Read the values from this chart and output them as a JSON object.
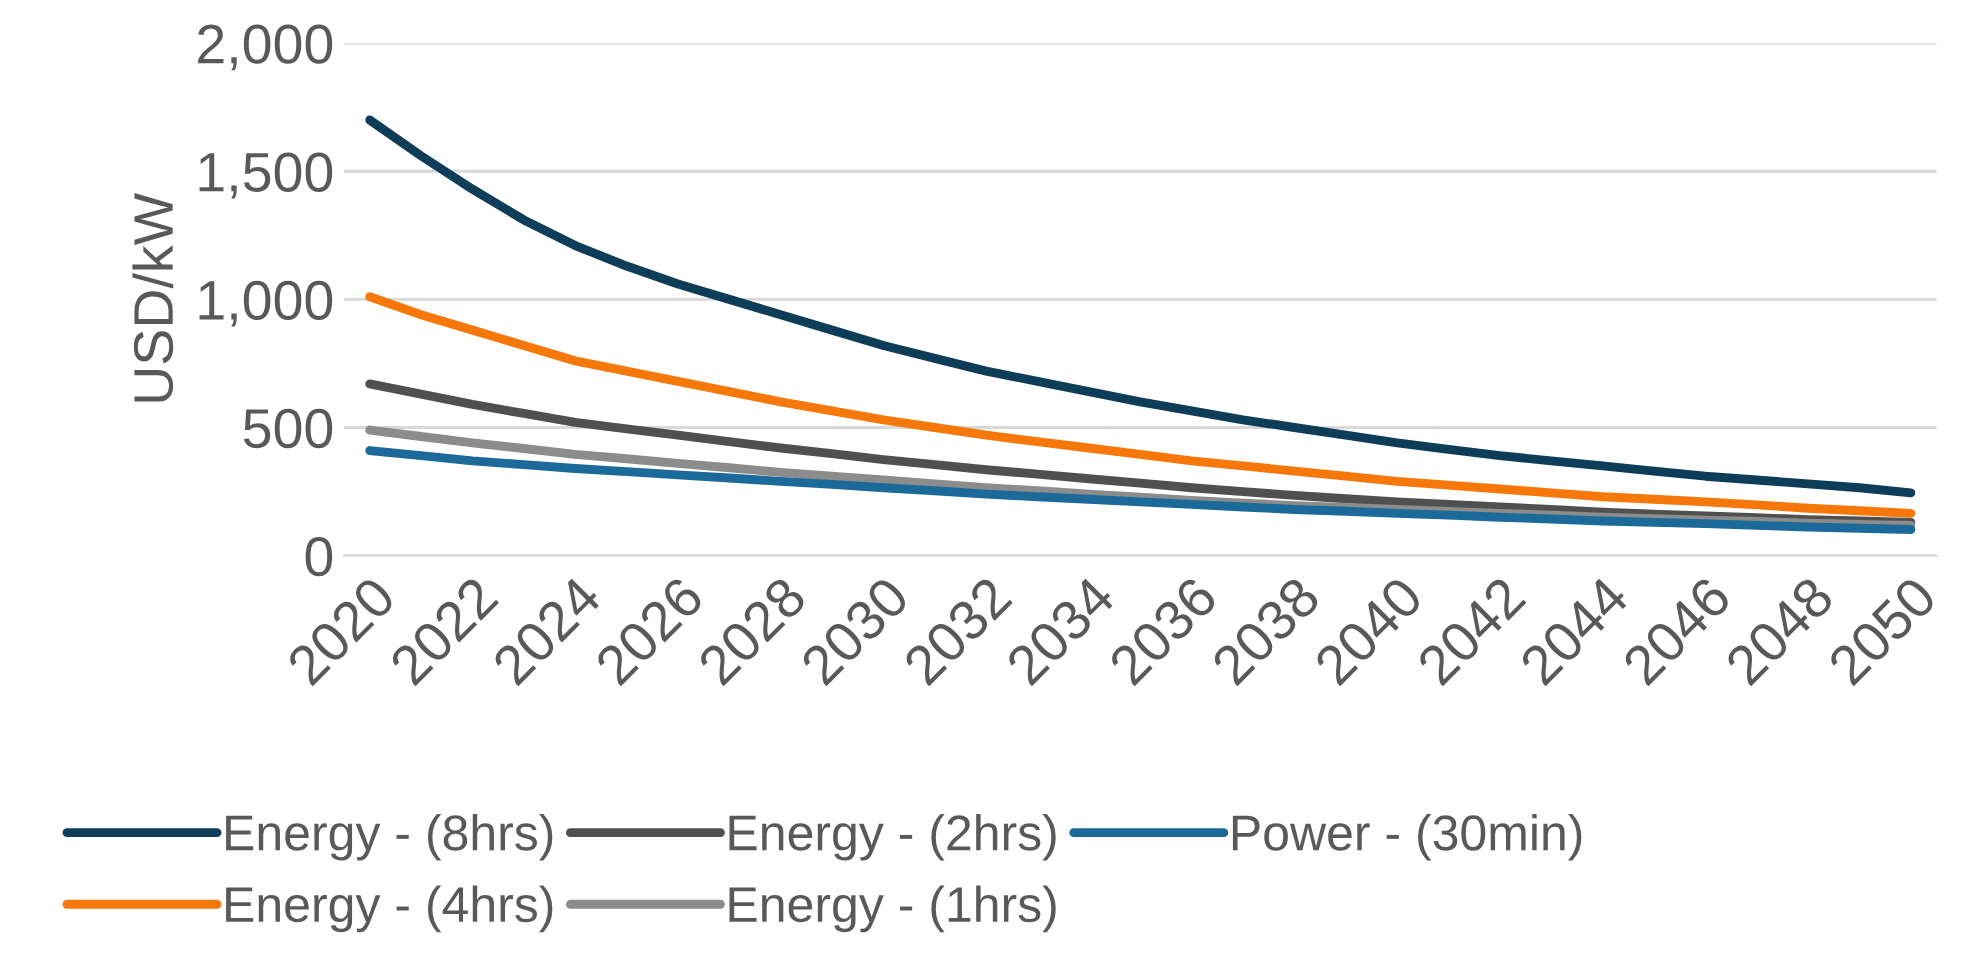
{
  "chart_data": {
    "type": "line",
    "ylabel": "USD/kW",
    "categories": [
      "2020",
      null,
      "2022",
      null,
      "2024",
      null,
      "2026",
      null,
      "2028",
      null,
      "2030",
      null,
      "2032",
      null,
      "2034",
      null,
      "2036",
      null,
      "2038",
      null,
      "2040",
      null,
      "2042",
      null,
      "2044",
      null,
      "2046",
      null,
      "2048",
      null,
      "2050"
    ],
    "series": [
      {
        "name": "Energy - (8hrs)",
        "color": "#0e3d59",
        "values": [
          1700,
          1560,
          1430,
          1310,
          1210,
          1130,
          1060,
          1000,
          940,
          880,
          820,
          770,
          720,
          680,
          640,
          600,
          565,
          530,
          500,
          470,
          440,
          415,
          390,
          370,
          350,
          330,
          310,
          295,
          280,
          265,
          245
        ]
      },
      {
        "name": "Energy - (4hrs)",
        "color": "#f7780a",
        "values": [
          1010,
          940,
          880,
          820,
          760,
          720,
          680,
          640,
          600,
          565,
          530,
          500,
          470,
          445,
          420,
          395,
          370,
          350,
          330,
          310,
          290,
          275,
          260,
          245,
          230,
          220,
          210,
          198,
          185,
          175,
          165
        ]
      },
      {
        "name": "Energy - (2hrs)",
        "color": "#505050",
        "values": [
          670,
          630,
          590,
          555,
          520,
          495,
          470,
          445,
          420,
          398,
          375,
          355,
          335,
          318,
          300,
          283,
          265,
          250,
          235,
          222,
          210,
          200,
          190,
          180,
          170,
          162,
          155,
          148,
          140,
          135,
          130
        ]
      },
      {
        "name": "Energy - (1hrs)",
        "color": "#8c8c8c",
        "values": [
          490,
          465,
          440,
          418,
          395,
          378,
          360,
          343,
          325,
          310,
          295,
          280,
          265,
          253,
          240,
          228,
          215,
          205,
          195,
          188,
          180,
          172,
          165,
          158,
          150,
          144,
          138,
          133,
          127,
          122,
          118
        ]
      },
      {
        "name": "Power - (30min)",
        "color": "#1b6a99",
        "values": [
          410,
          390,
          370,
          355,
          340,
          328,
          315,
          303,
          290,
          278,
          265,
          253,
          240,
          230,
          220,
          210,
          200,
          190,
          180,
          173,
          165,
          158,
          150,
          143,
          135,
          130,
          125,
          118,
          112,
          107,
          102
        ]
      }
    ],
    "ylim": [
      0,
      2000
    ],
    "yticks": [
      0,
      {
        "value": 500,
        "label": "500"
      },
      {
        "value": 1000,
        "label": "1,000"
      },
      {
        "value": 1500,
        "label": "1,500"
      },
      {
        "value": 2000,
        "label": "2,000"
      }
    ],
    "grid": "y",
    "legend": "bottom",
    "marker": "none",
    "line_style": "solid"
  }
}
